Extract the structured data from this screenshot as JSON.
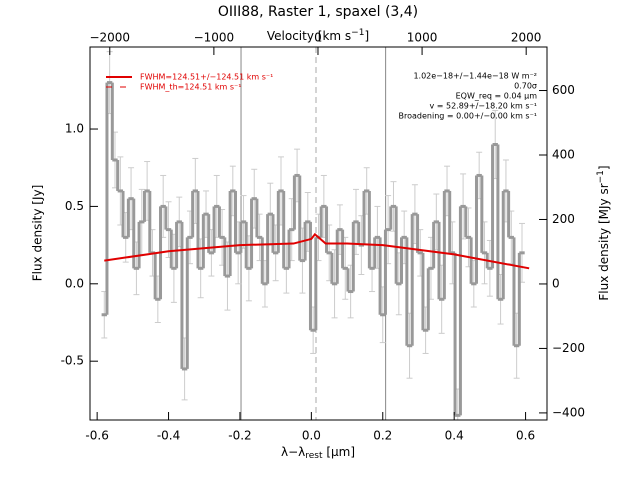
{
  "chart_data": {
    "type": "step",
    "title": "OIII88, Raster 1, spaxel (3,4)",
    "xlabel": [
      "λ−λ",
      "rest",
      " [μm]"
    ],
    "ylabel": "Flux density [Jy]",
    "x2label": [
      "Velocity [km s",
      "−1",
      "]"
    ],
    "y2label": [
      "Flux density [MJy sr",
      "−1",
      "]"
    ],
    "xlim": [
      -0.62,
      0.66
    ],
    "xticks": [
      -0.6,
      -0.4,
      -0.2,
      {
        "value": 0,
        "label": "0.0"
      },
      0.2,
      0.4,
      0.6
    ],
    "ylim": [
      -0.88,
      1.53
    ],
    "yticks": [
      -0.5,
      {
        "value": 0,
        "label": "0.0"
      },
      0.5,
      {
        "value": 1,
        "label": "1.0"
      }
    ],
    "x2lim": [
      -2190,
      2200
    ],
    "x2ticks": [
      {
        "value": -2000,
        "label": "−2000"
      },
      {
        "value": -1000,
        "label": "−1000"
      },
      0,
      1000,
      2000
    ],
    "y2lim": [
      -422,
      735
    ],
    "y2ticks": [
      {
        "value": -400,
        "label": "−400"
      },
      {
        "value": -200,
        "label": "−200"
      },
      0,
      200,
      400,
      600
    ],
    "vlines": [
      -0.197,
      0.208
    ],
    "dashed_vline": 0.013,
    "series": [
      {
        "name": "data",
        "color": "#999999",
        "x": [
          -0.58,
          -0.565,
          -0.55,
          -0.535,
          -0.52,
          -0.505,
          -0.49,
          -0.475,
          -0.46,
          -0.445,
          -0.43,
          -0.415,
          -0.4,
          -0.385,
          -0.37,
          -0.355,
          -0.34,
          -0.325,
          -0.31,
          -0.295,
          -0.28,
          -0.265,
          -0.25,
          -0.235,
          -0.22,
          -0.205,
          -0.19,
          -0.175,
          -0.16,
          -0.145,
          -0.13,
          -0.115,
          -0.1,
          -0.085,
          -0.07,
          -0.055,
          -0.04,
          -0.025,
          -0.01,
          0.005,
          0.02,
          0.035,
          0.05,
          0.065,
          0.08,
          0.095,
          0.11,
          0.125,
          0.14,
          0.155,
          0.17,
          0.185,
          0.2,
          0.215,
          0.23,
          0.245,
          0.26,
          0.275,
          0.29,
          0.305,
          0.32,
          0.335,
          0.35,
          0.365,
          0.38,
          0.395,
          0.41,
          0.425,
          0.44,
          0.455,
          0.47,
          0.485,
          0.5,
          0.515,
          0.53,
          0.545,
          0.56,
          0.575,
          0.59
        ],
        "values": [
          -0.2,
          1.3,
          0.8,
          0.6,
          0.3,
          0.55,
          0.1,
          0.4,
          0.6,
          0.2,
          -0.1,
          0.5,
          0.35,
          0.1,
          0.4,
          -0.55,
          0.3,
          0.6,
          0.1,
          0.45,
          0.2,
          0.5,
          0.3,
          0.05,
          0.6,
          0.2,
          0.4,
          0.1,
          0.55,
          0.3,
          0.0,
          0.45,
          0.2,
          0.6,
          0.1,
          0.35,
          0.7,
          0.15,
          0.4,
          -0.3,
          0.3,
          0.5,
          0.2,
          0.0,
          0.35,
          0.1,
          -0.05,
          0.4,
          0.25,
          0.6,
          0.1,
          0.3,
          -0.2,
          0.35,
          0.5,
          0.0,
          0.3,
          -0.4,
          0.45,
          0.2,
          -0.3,
          0.1,
          0.4,
          -0.1,
          0.6,
          0.2,
          -0.85,
          0.5,
          0.3,
          0.0,
          0.7,
          0.2,
          0.1,
          0.9,
          -0.1,
          0.6,
          0.3,
          -0.4,
          0.2
        ],
        "errors": [
          0.15,
          0.2,
          0.18,
          0.22,
          0.16,
          0.2,
          0.17,
          0.21,
          0.19,
          0.15,
          0.15,
          0.2,
          0.18,
          0.22,
          0.16,
          0.2,
          0.17,
          0.21,
          0.19,
          0.15,
          0.15,
          0.2,
          0.18,
          0.22,
          0.16,
          0.2,
          0.17,
          0.21,
          0.19,
          0.15,
          0.15,
          0.2,
          0.18,
          0.22,
          0.16,
          0.2,
          0.17,
          0.21,
          0.19,
          0.15,
          0.15,
          0.2,
          0.18,
          0.22,
          0.16,
          0.2,
          0.17,
          0.21,
          0.19,
          0.15,
          0.15,
          0.2,
          0.18,
          0.22,
          0.16,
          0.2,
          0.17,
          0.21,
          0.19,
          0.15,
          0.15,
          0.2,
          0.18,
          0.22,
          0.16,
          0.2,
          0.17,
          0.21,
          0.19,
          0.15,
          0.15,
          0.2,
          0.18,
          0.22,
          0.16,
          0.2,
          0.17,
          0.21,
          0.19
        ]
      },
      {
        "name": "FWHM=124.51+/−124.51 km s⁻¹",
        "color": "#e00000",
        "x": [
          -0.58,
          -0.4,
          -0.2,
          -0.05,
          0,
          0.01,
          0.02,
          0.04,
          0.1,
          0.2,
          0.4,
          0.61
        ],
        "values": [
          0.15,
          0.21,
          0.25,
          0.26,
          0.29,
          0.32,
          0.3,
          0.26,
          0.26,
          0.25,
          0.19,
          0.1
        ]
      },
      {
        "name": "FWHM_th=124.51 km s⁻¹",
        "color": "#e00000",
        "dashed": true
      }
    ],
    "annotations": [
      "1.02e−18+/−1.44e−18 W m⁻²",
      "0.70σ",
      "EQW_req = 0.04 μm",
      "v = 52.89+/−18.20 km s⁻¹",
      "Broadening = 0.00+/−0.00 km s⁻¹"
    ]
  }
}
